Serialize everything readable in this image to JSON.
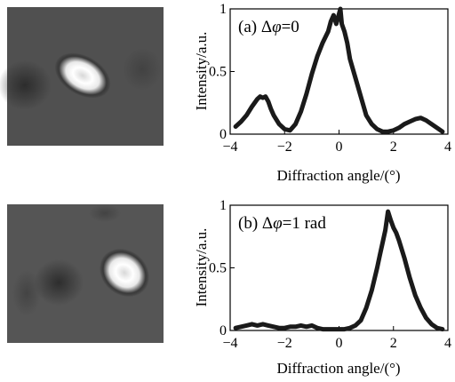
{
  "chart_data": [
    {
      "type": "line",
      "panel": "(a)",
      "annotation_prefix": "(a) Δ",
      "annotation_symbol": "φ",
      "annotation_suffix": "=0",
      "xlabel": "Diffraction angle/(°)",
      "ylabel": "Intensity/a.u.",
      "xlim": [
        -4,
        4
      ],
      "ylim": [
        0,
        1
      ],
      "xticks": [
        -4,
        -2,
        0,
        2,
        4
      ],
      "yticks": [
        0,
        0.5,
        1
      ],
      "ytick_labels": [
        "0",
        "0.5",
        "1"
      ],
      "grid": false,
      "series": [
        {
          "color": "#1a1a1a",
          "x": [
            -3.8,
            -3.6,
            -3.4,
            -3.2,
            -3.0,
            -2.9,
            -2.8,
            -2.7,
            -2.6,
            -2.5,
            -2.4,
            -2.2,
            -2.0,
            -1.8,
            -1.6,
            -1.4,
            -1.2,
            -1.0,
            -0.8,
            -0.6,
            -0.4,
            -0.3,
            -0.2,
            -0.1,
            0.0,
            0.05,
            0.1,
            0.2,
            0.3,
            0.4,
            0.6,
            0.8,
            1.0,
            1.2,
            1.4,
            1.6,
            1.8,
            2.0,
            2.2,
            2.4,
            2.6,
            2.8,
            3.0,
            3.2,
            3.4,
            3.6,
            3.8
          ],
          "y": [
            0.06,
            0.1,
            0.15,
            0.22,
            0.28,
            0.3,
            0.29,
            0.3,
            0.26,
            0.2,
            0.15,
            0.08,
            0.04,
            0.03,
            0.08,
            0.18,
            0.32,
            0.48,
            0.62,
            0.73,
            0.82,
            0.9,
            0.95,
            0.88,
            0.96,
            1.0,
            0.88,
            0.82,
            0.73,
            0.6,
            0.45,
            0.3,
            0.15,
            0.08,
            0.04,
            0.02,
            0.02,
            0.03,
            0.05,
            0.08,
            0.1,
            0.12,
            0.13,
            0.11,
            0.08,
            0.05,
            0.02
          ]
        }
      ]
    },
    {
      "type": "line",
      "panel": "(b)",
      "annotation_prefix": "(b) Δ",
      "annotation_symbol": "φ",
      "annotation_suffix": "=1  rad",
      "xlabel": "Diffraction angle/(°)",
      "ylabel": "Intensity/a.u.",
      "xlim": [
        -4,
        4
      ],
      "ylim": [
        0,
        1
      ],
      "xticks": [
        -4,
        -2,
        0,
        2,
        4
      ],
      "yticks": [
        0,
        0.5,
        1
      ],
      "ytick_labels": [
        "0",
        "0.5",
        "1"
      ],
      "grid": false,
      "series": [
        {
          "color": "#1a1a1a",
          "x": [
            -3.8,
            -3.6,
            -3.4,
            -3.2,
            -3.0,
            -2.8,
            -2.6,
            -2.4,
            -2.2,
            -2.0,
            -1.8,
            -1.6,
            -1.4,
            -1.2,
            -1.0,
            -0.8,
            -0.6,
            -0.4,
            -0.2,
            0.0,
            0.2,
            0.4,
            0.6,
            0.8,
            1.0,
            1.2,
            1.4,
            1.5,
            1.6,
            1.7,
            1.8,
            1.9,
            2.0,
            2.1,
            2.2,
            2.4,
            2.6,
            2.8,
            3.0,
            3.2,
            3.4,
            3.6,
            3.8
          ],
          "y": [
            0.02,
            0.03,
            0.04,
            0.05,
            0.04,
            0.05,
            0.04,
            0.03,
            0.02,
            0.02,
            0.03,
            0.03,
            0.04,
            0.03,
            0.04,
            0.02,
            0.01,
            0.01,
            0.01,
            0.01,
            0.01,
            0.02,
            0.04,
            0.08,
            0.18,
            0.32,
            0.5,
            0.6,
            0.7,
            0.8,
            0.95,
            0.88,
            0.82,
            0.78,
            0.72,
            0.58,
            0.42,
            0.28,
            0.18,
            0.1,
            0.05,
            0.02,
            0.01
          ]
        }
      ]
    }
  ]
}
